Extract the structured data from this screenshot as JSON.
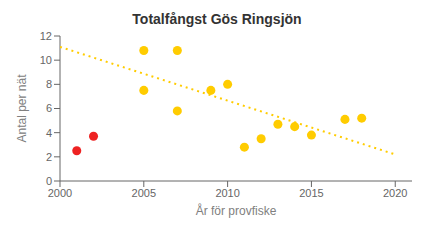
{
  "chart_data": {
    "type": "scatter",
    "title": "Totalfångst Gös Ringsjön",
    "xlabel": "År för provfiske",
    "ylabel": "Antal per nät",
    "xlim": [
      2000,
      2021
    ],
    "ylim": [
      0,
      12
    ],
    "xticks": [
      2000,
      2005,
      2010,
      2015,
      2020
    ],
    "yticks": [
      0,
      2,
      4,
      6,
      8,
      10,
      12
    ],
    "grid": false,
    "series": [
      {
        "type": "line",
        "line_style": "dotted",
        "color": "#ffcc00",
        "x": [
          2000,
          2020
        ],
        "values": [
          11.1,
          2.2
        ]
      },
      {
        "type": "scatter",
        "color": "#ffcc00",
        "x": [
          2005,
          2005,
          2007,
          2007,
          2009,
          2010,
          2011,
          2012,
          2013,
          2014,
          2015,
          2017,
          2018
        ],
        "values": [
          10.8,
          7.5,
          10.8,
          5.8,
          7.5,
          8.0,
          2.8,
          3.5,
          4.7,
          4.5,
          3.8,
          5.1,
          5.2
        ]
      },
      {
        "type": "scatter",
        "color": "#ee2222",
        "x": [
          2001,
          2002
        ],
        "values": [
          2.5,
          3.7
        ]
      }
    ]
  }
}
